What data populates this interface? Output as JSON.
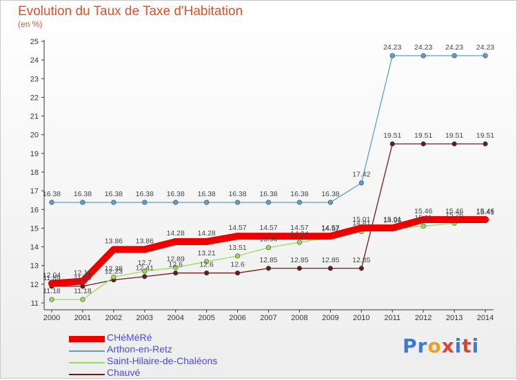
{
  "title": "Evolution du Taux de Taxe d'Habitation",
  "unit_label": "(en %)",
  "logo": {
    "text": "Proxiti",
    "letter_colors": [
      "#3a7bd5",
      "#3a7bd5",
      "#f0a020",
      "#e0403a",
      "#3a7bd5",
      "#e0403a",
      "#3a7bd5"
    ]
  },
  "chart_data": {
    "type": "line",
    "x": [
      "2000",
      "2001",
      "2002",
      "2003",
      "2004",
      "2005",
      "2006",
      "2007",
      "2008",
      "2009",
      "2010",
      "2011",
      "2012",
      "2013",
      "2014"
    ],
    "ylim": [
      11,
      25
    ],
    "yticks": [
      "11",
      "12",
      "13",
      "14",
      "15",
      "16",
      "17",
      "18",
      "19",
      "20",
      "21",
      "22",
      "23",
      "24",
      "25"
    ],
    "grid": false,
    "series": [
      {
        "name": "CHéMéRé",
        "color": "#ee0000",
        "values": [
          12.04,
          12.16,
          13.86,
          13.86,
          14.28,
          14.28,
          14.57,
          14.57,
          14.57,
          14.57,
          15.01,
          15.01,
          15.46,
          15.46,
          15.46
        ],
        "labels": [
          "12.04",
          "12.16",
          "13.86",
          "13.86",
          "14.28",
          "14.28",
          "14.57",
          "14.57",
          "14.57",
          "14.57",
          "15.01",
          "15.01",
          "15.46",
          "15.46",
          "15.46"
        ]
      },
      {
        "name": "Arthon-en-Retz",
        "color": "#5a9fd4",
        "values": [
          16.38,
          16.38,
          16.38,
          16.38,
          16.38,
          16.38,
          16.38,
          16.38,
          16.38,
          16.38,
          17.42,
          24.23,
          24.23,
          24.23,
          24.23
        ],
        "labels": [
          "16.38",
          "16.38",
          "16.38",
          "16.38",
          "16.38",
          "16.38",
          "16.38",
          "16.38",
          "16.38",
          "16.38",
          "17.42",
          "24.23",
          "24.23",
          "24.23",
          "24.23"
        ]
      },
      {
        "name": "Saint-Hilaire-de-Chaléons",
        "color": "#99dd55",
        "values": [
          11.18,
          11.18,
          12.38,
          12.7,
          12.89,
          13.21,
          13.51,
          13.96,
          14.24,
          14.52,
          14.81,
          14.96,
          15.11,
          15.26,
          15.41
        ],
        "labels": [
          "11.18",
          "11.18",
          "12.38",
          "12.7",
          "12.89",
          "13.21",
          "13.51",
          "13.96",
          "14.24",
          "14.52",
          "14.81",
          "14.96",
          "15.11",
          "15.26",
          "15.41"
        ]
      },
      {
        "name": "Chauvé",
        "color": "#6b1a1a",
        "values": [
          11.89,
          11.89,
          12.23,
          12.41,
          12.6,
          12.6,
          12.6,
          12.85,
          12.85,
          12.85,
          12.85,
          19.51,
          19.51,
          19.51,
          19.51
        ],
        "labels": [
          "11.89",
          "11.89",
          "12.23",
          "12.41",
          "12.6",
          "12.6",
          "12.6",
          "12.85",
          "12.85",
          "12.85",
          "12.85",
          "19.51",
          "19.51",
          "19.51",
          "19.51"
        ]
      }
    ]
  }
}
